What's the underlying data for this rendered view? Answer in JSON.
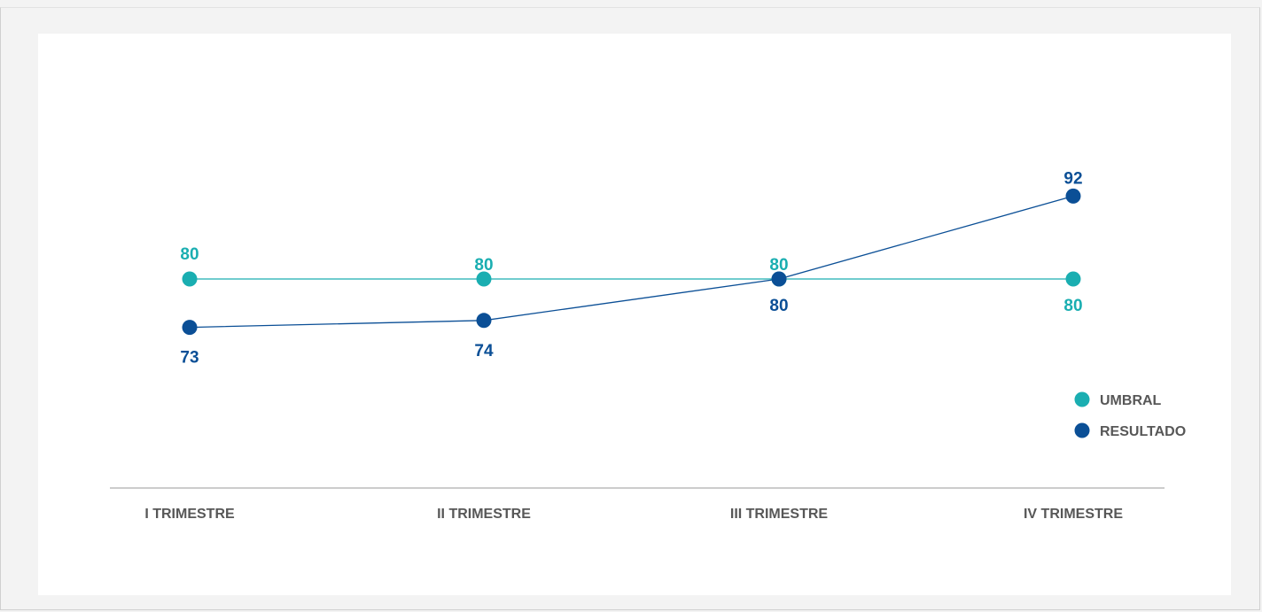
{
  "chart_data": {
    "type": "line",
    "categories": [
      "I TRIMESTRE",
      "II TRIMESTRE",
      "III TRIMESTRE",
      "IV TRIMESTRE"
    ],
    "series": [
      {
        "name": "UMBRAL",
        "values": [
          80,
          80,
          80,
          80
        ],
        "color": "#1aaeb1"
      },
      {
        "name": "RESULTADO",
        "values": [
          73,
          74,
          80,
          92
        ],
        "color": "#0b4f96"
      }
    ],
    "title": "",
    "xlabel": "",
    "ylabel": "",
    "ylim": [
      60,
      100
    ],
    "grid": false,
    "legend_position": "right"
  }
}
